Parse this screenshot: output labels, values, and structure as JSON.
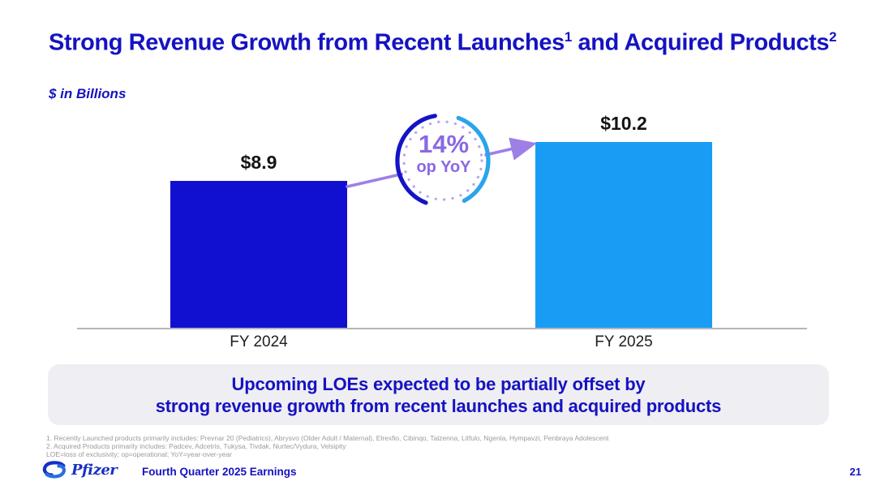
{
  "slide": {
    "title": {
      "part1": "Strong Revenue Growth from Recent Launches",
      "sup1": "1",
      "part2": " and Acquired Products",
      "sup2": "2"
    },
    "units_note": "$ in Billions",
    "footer_text": "Fourth Quarter 2025 Earnings",
    "brand": "Pfizer",
    "page_number": "21"
  },
  "chart_data": {
    "type": "bar",
    "title": "Strong Revenue Growth from Recent Launches and Acquired Products",
    "ylabel": "$ in Billions",
    "categories": [
      "FY 2024",
      "FY 2025"
    ],
    "values": [
      8.9,
      10.2
    ],
    "value_labels": [
      "$8.9",
      "$10.2"
    ],
    "bar_colors": [
      "#1110d0",
      "#199df4"
    ],
    "axis_range": [
      4,
      10.5
    ],
    "grid": false,
    "legend": false,
    "annotation": {
      "value": "14%",
      "label": "op YoY"
    }
  },
  "callout": {
    "line1": "Upcoming LOEs expected to be partially offset by",
    "line2": "strong revenue growth from recent launches and acquired products"
  },
  "footnotes": [
    "1. Recently Launched products primarily includes: Prevnar 20 (Pediatrics), Abrysvo (Older Adult / Maternal), Elrexfio, Cibinqo, Talzenna, Litfulo, Ngenla, Hympavzi, Penbraya Adolescent",
    "2. Acquired Products primarily includes: Padcev, Adcetris, Tukysa, Tivdak, Nurtec/Vydura, Velsipity",
    "LOE=loss of exclusivity; op=operational; YoY=year-over-year"
  ],
  "colors": {
    "heading_blue": "#1512c2",
    "bar_dark_blue": "#1110d0",
    "bar_light_blue": "#199df4",
    "accent_purple": "#8a68e4",
    "arrow_purple": "#9e7fe6",
    "dot_ring_purple": "#b7a4ee",
    "arc_dark_blue": "#1413c6",
    "arc_light_blue": "#2ba4ea",
    "callout_bg": "#efeef2",
    "footnote_gray": "#9b9b9b"
  }
}
